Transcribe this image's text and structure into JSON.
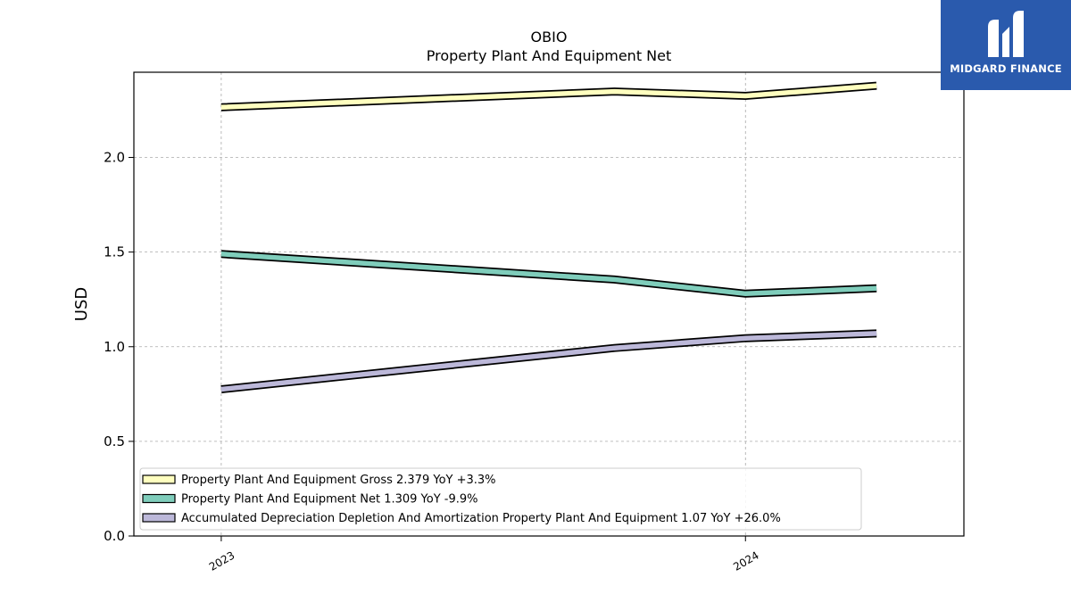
{
  "chart_data": {
    "type": "line",
    "title": "OBIO",
    "subtitle": "Property Plant And Equipment Net",
    "xlabel": "",
    "ylabel": "USD",
    "x": [
      "2023-01",
      "2023-10",
      "2024-01",
      "2024-04"
    ],
    "xticks": [
      "2023",
      "2024"
    ],
    "yticks": [
      "0.0",
      "0.5",
      "1.0",
      "1.5",
      "2.0"
    ],
    "ylim": [
      0,
      2.45
    ],
    "grid": true,
    "legend_position": "lower-left",
    "series": [
      {
        "name": "Property Plant And Equipment Gross",
        "legend_label": "Property Plant And Equipment Gross  2.379 YoY +3.3%",
        "color": "#ffffbf",
        "values": [
          2.265,
          2.348,
          2.325,
          2.379
        ]
      },
      {
        "name": "Property Plant And Equipment Net",
        "legend_label": "Property Plant And Equipment Net  1.309 YoY -9.9%",
        "color": "#7fcdbb",
        "values": [
          1.49,
          1.355,
          1.28,
          1.309
        ]
      },
      {
        "name": "Accumulated Depreciation Depletion And Amortization Property Plant And Equipment",
        "legend_label": "Accumulated Depreciation Depletion And Amortization Property Plant And Equipment  1.07 YoY +26.0%",
        "color": "#bcb8d9",
        "values": [
          0.775,
          0.993,
          1.045,
          1.07
        ]
      }
    ]
  },
  "logo": {
    "text": "MIDGARD FINANCE",
    "color": "#2a5aad"
  }
}
